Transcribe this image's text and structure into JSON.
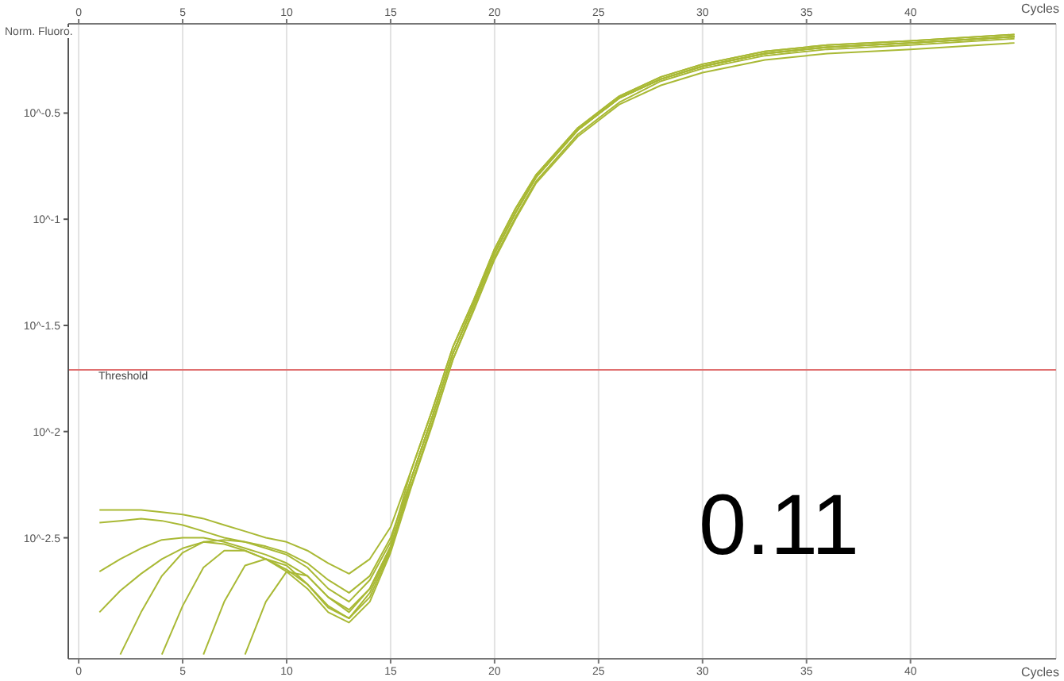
{
  "chart_data": {
    "type": "line",
    "ylabel": "Norm. Fluoro.",
    "xlabel": "Cycles",
    "x2label": "Cycles",
    "x": [
      1,
      2,
      3,
      4,
      5,
      6,
      7,
      8,
      9,
      10,
      11,
      12,
      13,
      14,
      15,
      16,
      17,
      18,
      19,
      20,
      21,
      22,
      24,
      26,
      28,
      30,
      33,
      36,
      40,
      45
    ],
    "series": [
      {
        "color": "#a9b935",
        "values": [
          0.00427,
          0.00427,
          0.00427,
          0.00417,
          0.00407,
          0.00389,
          0.00363,
          0.00339,
          0.00316,
          0.00302,
          0.00275,
          0.0024,
          0.00214,
          0.00251,
          0.00355,
          0.00661,
          0.0126,
          0.0251,
          0.0417,
          0.0724,
          0.112,
          0.162,
          0.269,
          0.38,
          0.468,
          0.537,
          0.617,
          0.661,
          0.692,
          0.741
        ]
      },
      {
        "color": "#a9b935",
        "values": [
          0.00372,
          0.0038,
          0.00389,
          0.0038,
          0.00363,
          0.00339,
          0.00316,
          0.00302,
          0.00288,
          0.00269,
          0.0024,
          0.002,
          0.00174,
          0.00209,
          0.00316,
          0.00603,
          0.0117,
          0.0234,
          0.0398,
          0.0692,
          0.107,
          0.158,
          0.263,
          0.372,
          0.457,
          0.525,
          0.603,
          0.646,
          0.676,
          0.724
        ]
      },
      {
        "color": "#a9b935",
        "values": [
          0.00219,
          0.00251,
          0.00282,
          0.00309,
          0.00316,
          0.00316,
          0.00302,
          0.00282,
          0.00263,
          0.0024,
          0.00209,
          0.00166,
          0.00145,
          0.00182,
          0.00288,
          0.00562,
          0.011,
          0.0219,
          0.038,
          0.0661,
          0.102,
          0.151,
          0.251,
          0.355,
          0.447,
          0.513,
          0.589,
          0.631,
          0.661,
          0.708
        ]
      },
      {
        "color": "#a9b935",
        "values": [
          null,
          0.000891,
          0.00141,
          0.00209,
          0.00269,
          0.00302,
          0.00295,
          0.00275,
          0.00251,
          0.00224,
          0.00191,
          0.00151,
          0.00132,
          0.00166,
          0.00275,
          0.00603,
          0.0117,
          0.0234,
          0.0398,
          0.0692,
          0.107,
          0.158,
          0.263,
          0.372,
          0.457,
          0.525,
          0.603,
          0.646,
          0.676,
          0.724
        ]
      },
      {
        "color": "#a9b935",
        "values": [
          null,
          null,
          null,
          0.000891,
          0.00151,
          0.00229,
          0.00275,
          0.00275,
          0.00251,
          0.00219,
          0.00182,
          0.00141,
          0.00126,
          0.00158,
          0.00269,
          0.0055,
          0.0107,
          0.0219,
          0.0372,
          0.0646,
          0.1,
          0.148,
          0.245,
          0.347,
          0.427,
          0.49,
          0.562,
          0.603,
          0.631,
          0.676
        ]
      },
      {
        "color": "#a9b935",
        "values": [
          null,
          null,
          null,
          null,
          null,
          0.000891,
          0.00158,
          0.00234,
          0.00251,
          0.00234,
          0.00191,
          0.00148,
          0.00132,
          0.00174,
          0.00282,
          0.00603,
          0.0117,
          0.0234,
          0.0398,
          0.0692,
          0.107,
          0.158,
          0.263,
          0.372,
          0.457,
          0.525,
          0.603,
          0.646,
          0.676,
          0.724
        ]
      },
      {
        "color": "#a9b935",
        "values": [
          null,
          null,
          null,
          null,
          null,
          null,
          null,
          0.000891,
          0.00158,
          0.00219,
          0.00209,
          0.00166,
          0.00141,
          0.00182,
          0.00288,
          0.00603,
          0.0117,
          0.0234,
          0.0398,
          0.0692,
          0.107,
          0.158,
          0.263,
          0.372,
          0.457,
          0.525,
          0.603,
          0.646,
          0.676,
          0.724
        ]
      },
      {
        "color": "#a9b935",
        "values": [
          0.00141,
          0.00178,
          0.00214,
          0.00251,
          0.00282,
          0.00302,
          0.00309,
          0.00302,
          0.00282,
          0.00263,
          0.00229,
          0.00182,
          0.00158,
          0.002,
          0.00302,
          0.00661,
          0.0126,
          0.0251,
          0.0417,
          0.0724,
          0.112,
          0.162,
          0.269,
          0.38,
          0.468,
          0.537,
          0.617,
          0.661,
          0.692,
          0.741
        ]
      }
    ],
    "xlim": [
      -0.5,
      47
    ],
    "xticks": [
      0,
      5,
      10,
      15,
      20,
      25,
      30,
      35,
      40
    ],
    "x2lim": [
      -0.5,
      47
    ],
    "x2ticks": [
      0,
      5,
      10,
      15,
      20,
      25,
      30,
      35,
      40
    ],
    "log": "y",
    "ylim": [
      0.000851,
      0.832
    ],
    "yticks": [
      {
        "value": 0.00316,
        "label": "10^-2.5"
      },
      {
        "value": 0.01,
        "label": "10^-2"
      },
      {
        "value": 0.0316,
        "label": "10^-1.5"
      },
      {
        "value": 0.1,
        "label": "10^-1"
      },
      {
        "value": 0.316,
        "label": "10^-0.5"
      }
    ],
    "ref_lines": [
      {
        "axis": "y",
        "value": 0.0195,
        "label": "Threshold",
        "color": "#e07070"
      }
    ],
    "annotations": [
      "0.11"
    ],
    "grid": true,
    "marker": "none",
    "line_style": "solid"
  }
}
